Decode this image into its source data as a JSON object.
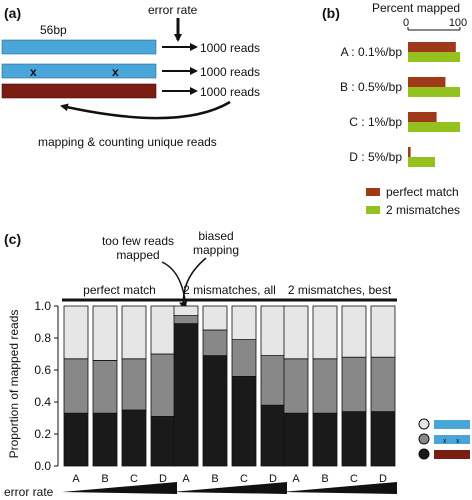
{
  "panel_a": {
    "panel_label": "(a)",
    "read_length": "56bp",
    "error_label": "error rate",
    "reads_labels": [
      "1000 reads",
      "1000 reads",
      "1000 reads"
    ],
    "mismatch_marks": [
      "x",
      "x"
    ],
    "caption": "mapping & counting unique reads",
    "colors": {
      "blue": "#4aa6d8",
      "red": "#7a1d12"
    }
  },
  "panel_b": {
    "panel_label": "(b)",
    "chart_title": "Percent mapped",
    "tick_labels": [
      "0",
      "100"
    ],
    "legend": [
      "perfect match",
      "2 mismatches"
    ]
  },
  "panel_c": {
    "panel_label": "(c)",
    "annotation_too_few": [
      "too few reads",
      "mapped"
    ],
    "annotation_biased": [
      "biased",
      "mapping"
    ],
    "x_axis_bottom_label": "error rate"
  },
  "chart_data": [
    {
      "type": "bar",
      "orientation": "horizontal",
      "title": "Percent mapped",
      "categories": [
        "A : 0.1%/bp",
        "B : 0.5%/bp",
        "C : 1%/bp",
        "D : 5%/bp"
      ],
      "xlim": [
        0,
        100
      ],
      "series": [
        {
          "name": "perfect match",
          "color": "#a0381a",
          "values": [
            92,
            72,
            55,
            5
          ]
        },
        {
          "name": "2 mismatches",
          "color": "#95c11f",
          "values": [
            100,
            100,
            100,
            52
          ]
        }
      ],
      "legend_position": "bottom"
    },
    {
      "type": "bar",
      "stacked": true,
      "ylabel": "Proportion of mapped reads",
      "ylim": [
        0,
        1.0
      ],
      "yticks": [
        "0.0",
        "0.2",
        "0.4",
        "0.6",
        "0.8",
        "1.0"
      ],
      "groups": [
        "perfect match",
        "2 mismatches, all",
        "2 mismatches, best"
      ],
      "categories": [
        "A",
        "B",
        "C",
        "D",
        "A",
        "B",
        "C",
        "D",
        "A",
        "B",
        "C",
        "D"
      ],
      "series": [
        {
          "color": "#1a1a1a",
          "values": [
            0.33,
            0.33,
            0.35,
            0.31,
            0.89,
            0.69,
            0.56,
            0.38,
            0.33,
            0.33,
            0.34,
            0.34
          ]
        },
        {
          "color": "#888888",
          "values": [
            0.34,
            0.33,
            0.32,
            0.39,
            0.05,
            0.16,
            0.23,
            0.31,
            0.34,
            0.34,
            0.34,
            0.34
          ]
        },
        {
          "color": "#e6e6e6",
          "values": [
            0.33,
            0.34,
            0.33,
            0.3,
            0.06,
            0.15,
            0.21,
            0.31,
            0.33,
            0.33,
            0.32,
            0.32
          ]
        }
      ],
      "legend_position": "right"
    }
  ]
}
